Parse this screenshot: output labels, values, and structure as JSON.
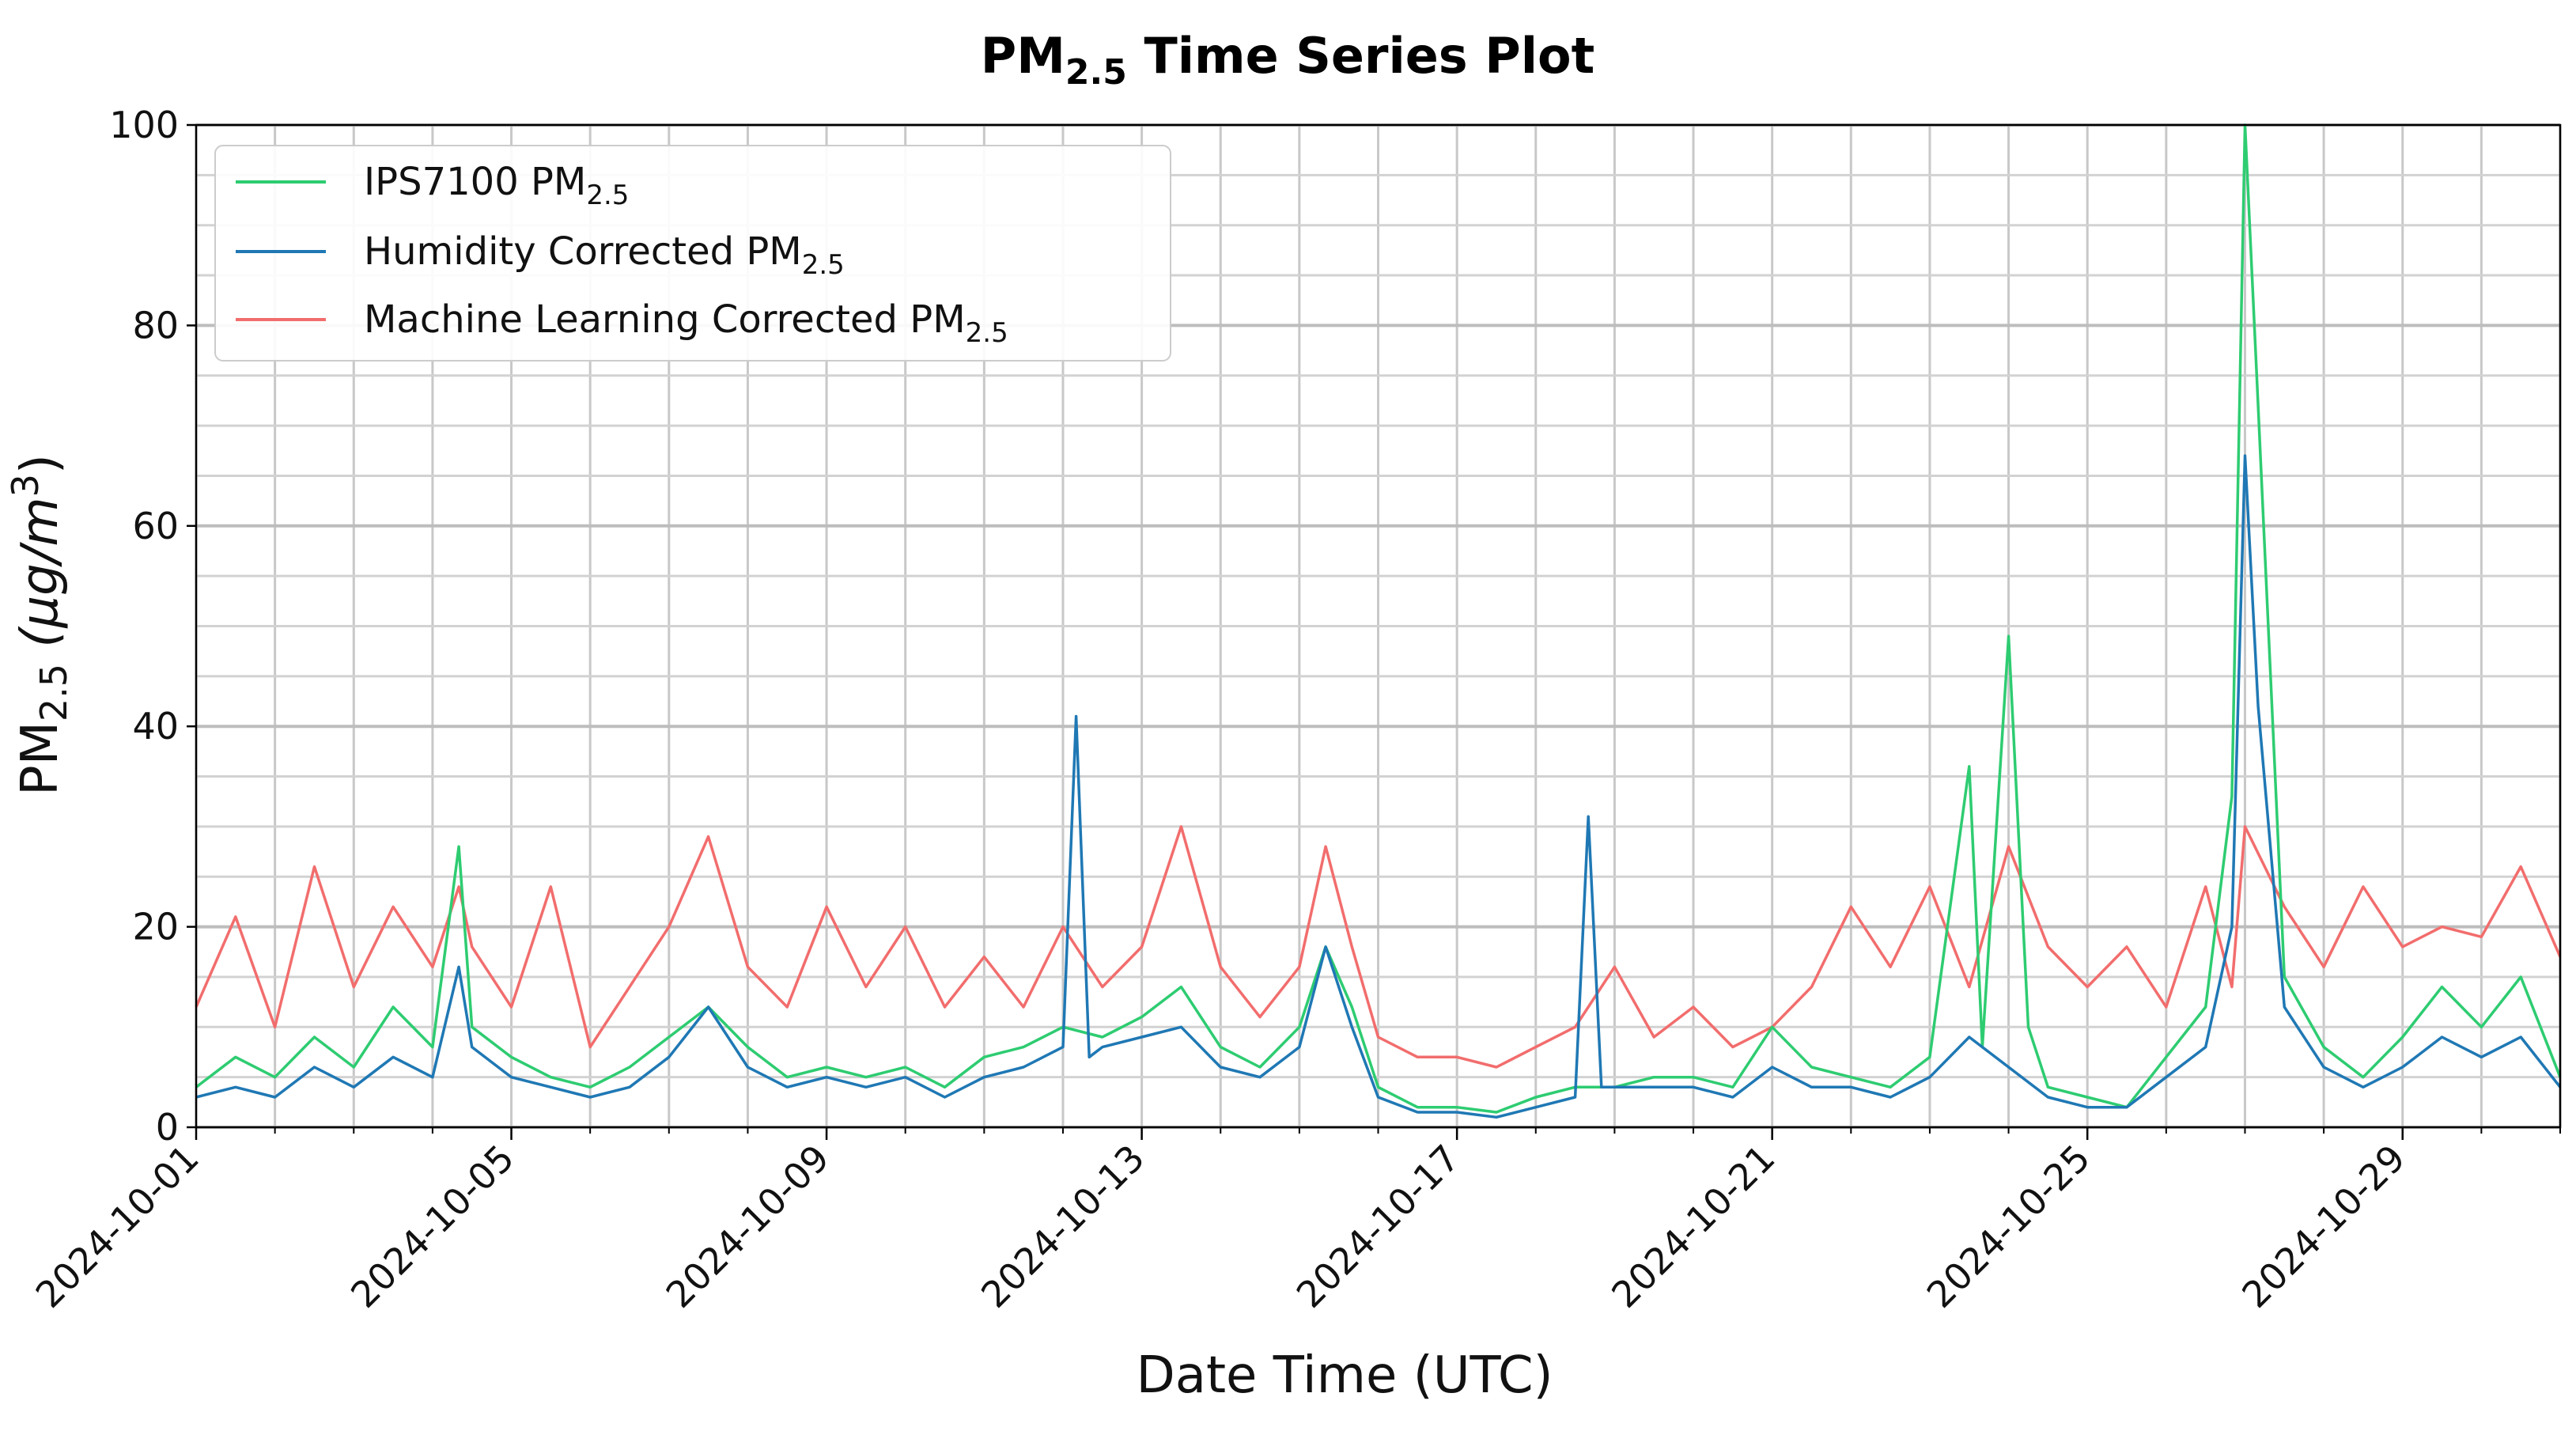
{
  "chart_data": {
    "type": "line",
    "title": "PM",
    "title_sub": "2.5",
    "title_rest": " Time Series Plot",
    "xlabel": "Date Time (UTC)",
    "ylabel_main": "PM",
    "ylabel_sub": "2.5",
    "ylabel_unit": " (μg/m",
    "ylabel_sup": "3",
    "ylabel_close": ")",
    "ylim": [
      0,
      100
    ],
    "xlim": [
      "2024-10-01",
      "2024-10-31"
    ],
    "yticks": [
      0,
      20,
      40,
      60,
      80,
      100
    ],
    "ytick_labels": [
      "0",
      "20",
      "40",
      "60",
      "80",
      "100"
    ],
    "xticks": [
      "2024-10-01",
      "2024-10-05",
      "2024-10-09",
      "2024-10-13",
      "2024-10-17",
      "2024-10-21",
      "2024-10-25",
      "2024-10-29"
    ],
    "grid": true,
    "minor_grid": true,
    "legend_position": "top-left",
    "series": [
      {
        "name": "IPS7100 PM",
        "name_sub": "2.5",
        "color": "#2ecc71",
        "points": [
          [
            "2024-10-01T00:00",
            4
          ],
          [
            "2024-10-01T12:00",
            7
          ],
          [
            "2024-10-02T00:00",
            5
          ],
          [
            "2024-10-02T12:00",
            9
          ],
          [
            "2024-10-03T00:00",
            6
          ],
          [
            "2024-10-03T12:00",
            12
          ],
          [
            "2024-10-04T00:00",
            8
          ],
          [
            "2024-10-04T08:00",
            28
          ],
          [
            "2024-10-04T12:00",
            10
          ],
          [
            "2024-10-05T00:00",
            7
          ],
          [
            "2024-10-05T12:00",
            5
          ],
          [
            "2024-10-06T00:00",
            4
          ],
          [
            "2024-10-06T12:00",
            6
          ],
          [
            "2024-10-07T00:00",
            9
          ],
          [
            "2024-10-07T12:00",
            12
          ],
          [
            "2024-10-08T00:00",
            8
          ],
          [
            "2024-10-08T12:00",
            5
          ],
          [
            "2024-10-09T00:00",
            6
          ],
          [
            "2024-10-09T12:00",
            5
          ],
          [
            "2024-10-10T00:00",
            6
          ],
          [
            "2024-10-10T12:00",
            4
          ],
          [
            "2024-10-11T00:00",
            7
          ],
          [
            "2024-10-11T12:00",
            8
          ],
          [
            "2024-10-12T00:00",
            10
          ],
          [
            "2024-10-12T12:00",
            9
          ],
          [
            "2024-10-13T00:00",
            11
          ],
          [
            "2024-10-13T12:00",
            14
          ],
          [
            "2024-10-14T00:00",
            8
          ],
          [
            "2024-10-14T12:00",
            6
          ],
          [
            "2024-10-15T00:00",
            10
          ],
          [
            "2024-10-15T08:00",
            18
          ],
          [
            "2024-10-15T16:00",
            12
          ],
          [
            "2024-10-16T00:00",
            4
          ],
          [
            "2024-10-16T12:00",
            2
          ],
          [
            "2024-10-17T00:00",
            2
          ],
          [
            "2024-10-17T12:00",
            1.5
          ],
          [
            "2024-10-18T00:00",
            3
          ],
          [
            "2024-10-18T12:00",
            4
          ],
          [
            "2024-10-19T00:00",
            4
          ],
          [
            "2024-10-19T12:00",
            5
          ],
          [
            "2024-10-20T00:00",
            5
          ],
          [
            "2024-10-20T12:00",
            4
          ],
          [
            "2024-10-21T00:00",
            10
          ],
          [
            "2024-10-21T12:00",
            6
          ],
          [
            "2024-10-22T00:00",
            5
          ],
          [
            "2024-10-22T12:00",
            4
          ],
          [
            "2024-10-23T00:00",
            7
          ],
          [
            "2024-10-23T12:00",
            36
          ],
          [
            "2024-10-23T16:00",
            8
          ],
          [
            "2024-10-24T00:00",
            49
          ],
          [
            "2024-10-24T06:00",
            10
          ],
          [
            "2024-10-24T12:00",
            4
          ],
          [
            "2024-10-25T00:00",
            3
          ],
          [
            "2024-10-25T12:00",
            2
          ],
          [
            "2024-10-26T00:00",
            7
          ],
          [
            "2024-10-26T12:00",
            12
          ],
          [
            "2024-10-26T20:00",
            33
          ],
          [
            "2024-10-27T00:00",
            100
          ],
          [
            "2024-10-27T04:00",
            72
          ],
          [
            "2024-10-27T12:00",
            15
          ],
          [
            "2024-10-28T00:00",
            8
          ],
          [
            "2024-10-28T12:00",
            5
          ],
          [
            "2024-10-29T00:00",
            9
          ],
          [
            "2024-10-29T12:00",
            14
          ],
          [
            "2024-10-30T00:00",
            10
          ],
          [
            "2024-10-30T12:00",
            15
          ],
          [
            "2024-10-31T00:00",
            5
          ]
        ]
      },
      {
        "name": "Humidity Corrected PM",
        "name_sub": "2.5",
        "color": "#1f78b4",
        "points": [
          [
            "2024-10-01T00:00",
            3
          ],
          [
            "2024-10-01T12:00",
            4
          ],
          [
            "2024-10-02T00:00",
            3
          ],
          [
            "2024-10-02T12:00",
            6
          ],
          [
            "2024-10-03T00:00",
            4
          ],
          [
            "2024-10-03T12:00",
            7
          ],
          [
            "2024-10-04T00:00",
            5
          ],
          [
            "2024-10-04T08:00",
            16
          ],
          [
            "2024-10-04T12:00",
            8
          ],
          [
            "2024-10-05T00:00",
            5
          ],
          [
            "2024-10-05T12:00",
            4
          ],
          [
            "2024-10-06T00:00",
            3
          ],
          [
            "2024-10-06T12:00",
            4
          ],
          [
            "2024-10-07T00:00",
            7
          ],
          [
            "2024-10-07T12:00",
            12
          ],
          [
            "2024-10-08T00:00",
            6
          ],
          [
            "2024-10-08T12:00",
            4
          ],
          [
            "2024-10-09T00:00",
            5
          ],
          [
            "2024-10-09T12:00",
            4
          ],
          [
            "2024-10-10T00:00",
            5
          ],
          [
            "2024-10-10T12:00",
            3
          ],
          [
            "2024-10-11T00:00",
            5
          ],
          [
            "2024-10-11T12:00",
            6
          ],
          [
            "2024-10-12T00:00",
            8
          ],
          [
            "2024-10-12T04:00",
            41
          ],
          [
            "2024-10-12T08:00",
            7
          ],
          [
            "2024-10-12T12:00",
            8
          ],
          [
            "2024-10-13T00:00",
            9
          ],
          [
            "2024-10-13T12:00",
            10
          ],
          [
            "2024-10-14T00:00",
            6
          ],
          [
            "2024-10-14T12:00",
            5
          ],
          [
            "2024-10-15T00:00",
            8
          ],
          [
            "2024-10-15T08:00",
            18
          ],
          [
            "2024-10-15T16:00",
            10
          ],
          [
            "2024-10-16T00:00",
            3
          ],
          [
            "2024-10-16T12:00",
            1.5
          ],
          [
            "2024-10-17T00:00",
            1.5
          ],
          [
            "2024-10-17T12:00",
            1
          ],
          [
            "2024-10-18T00:00",
            2
          ],
          [
            "2024-10-18T12:00",
            3
          ],
          [
            "2024-10-18T16:00",
            31
          ],
          [
            "2024-10-18T20:00",
            4
          ],
          [
            "2024-10-19T12:00",
            4
          ],
          [
            "2024-10-20T00:00",
            4
          ],
          [
            "2024-10-20T12:00",
            3
          ],
          [
            "2024-10-21T00:00",
            6
          ],
          [
            "2024-10-21T12:00",
            4
          ],
          [
            "2024-10-22T00:00",
            4
          ],
          [
            "2024-10-22T12:00",
            3
          ],
          [
            "2024-10-23T00:00",
            5
          ],
          [
            "2024-10-23T12:00",
            9
          ],
          [
            "2024-10-24T00:00",
            6
          ],
          [
            "2024-10-24T12:00",
            3
          ],
          [
            "2024-10-25T00:00",
            2
          ],
          [
            "2024-10-25T12:00",
            2
          ],
          [
            "2024-10-26T00:00",
            5
          ],
          [
            "2024-10-26T12:00",
            8
          ],
          [
            "2024-10-26T20:00",
            20
          ],
          [
            "2024-10-27T00:00",
            67
          ],
          [
            "2024-10-27T04:00",
            42
          ],
          [
            "2024-10-27T12:00",
            12
          ],
          [
            "2024-10-28T00:00",
            6
          ],
          [
            "2024-10-28T12:00",
            4
          ],
          [
            "2024-10-29T00:00",
            6
          ],
          [
            "2024-10-29T12:00",
            9
          ],
          [
            "2024-10-30T00:00",
            7
          ],
          [
            "2024-10-30T12:00",
            9
          ],
          [
            "2024-10-31T00:00",
            4
          ]
        ]
      },
      {
        "name": "Machine Learning Corrected PM",
        "name_sub": "2.5",
        "color": "#f26d6d",
        "points": [
          [
            "2024-10-01T00:00",
            12
          ],
          [
            "2024-10-01T12:00",
            21
          ],
          [
            "2024-10-02T00:00",
            10
          ],
          [
            "2024-10-02T12:00",
            26
          ],
          [
            "2024-10-03T00:00",
            14
          ],
          [
            "2024-10-03T12:00",
            22
          ],
          [
            "2024-10-04T00:00",
            16
          ],
          [
            "2024-10-04T08:00",
            24
          ],
          [
            "2024-10-04T12:00",
            18
          ],
          [
            "2024-10-05T00:00",
            12
          ],
          [
            "2024-10-05T12:00",
            24
          ],
          [
            "2024-10-06T00:00",
            8
          ],
          [
            "2024-10-06T12:00",
            14
          ],
          [
            "2024-10-07T00:00",
            20
          ],
          [
            "2024-10-07T12:00",
            29
          ],
          [
            "2024-10-08T00:00",
            16
          ],
          [
            "2024-10-08T12:00",
            12
          ],
          [
            "2024-10-09T00:00",
            22
          ],
          [
            "2024-10-09T12:00",
            14
          ],
          [
            "2024-10-10T00:00",
            20
          ],
          [
            "2024-10-10T12:00",
            12
          ],
          [
            "2024-10-11T00:00",
            17
          ],
          [
            "2024-10-11T12:00",
            12
          ],
          [
            "2024-10-12T00:00",
            20
          ],
          [
            "2024-10-12T12:00",
            14
          ],
          [
            "2024-10-13T00:00",
            18
          ],
          [
            "2024-10-13T12:00",
            30
          ],
          [
            "2024-10-14T00:00",
            16
          ],
          [
            "2024-10-14T12:00",
            11
          ],
          [
            "2024-10-15T00:00",
            16
          ],
          [
            "2024-10-15T08:00",
            28
          ],
          [
            "2024-10-15T16:00",
            18
          ],
          [
            "2024-10-16T00:00",
            9
          ],
          [
            "2024-10-16T12:00",
            7
          ],
          [
            "2024-10-17T00:00",
            7
          ],
          [
            "2024-10-17T12:00",
            6
          ],
          [
            "2024-10-18T00:00",
            8
          ],
          [
            "2024-10-18T12:00",
            10
          ],
          [
            "2024-10-19T00:00",
            16
          ],
          [
            "2024-10-19T12:00",
            9
          ],
          [
            "2024-10-20T00:00",
            12
          ],
          [
            "2024-10-20T12:00",
            8
          ],
          [
            "2024-10-21T00:00",
            10
          ],
          [
            "2024-10-21T12:00",
            14
          ],
          [
            "2024-10-22T00:00",
            22
          ],
          [
            "2024-10-22T12:00",
            16
          ],
          [
            "2024-10-23T00:00",
            24
          ],
          [
            "2024-10-23T12:00",
            14
          ],
          [
            "2024-10-24T00:00",
            28
          ],
          [
            "2024-10-24T12:00",
            18
          ],
          [
            "2024-10-25T00:00",
            14
          ],
          [
            "2024-10-25T12:00",
            18
          ],
          [
            "2024-10-26T00:00",
            12
          ],
          [
            "2024-10-26T12:00",
            24
          ],
          [
            "2024-10-26T20:00",
            14
          ],
          [
            "2024-10-27T00:00",
            30
          ],
          [
            "2024-10-27T12:00",
            22
          ],
          [
            "2024-10-28T00:00",
            16
          ],
          [
            "2024-10-28T12:00",
            24
          ],
          [
            "2024-10-29T00:00",
            18
          ],
          [
            "2024-10-29T12:00",
            20
          ],
          [
            "2024-10-30T00:00",
            19
          ],
          [
            "2024-10-30T12:00",
            26
          ],
          [
            "2024-10-31T00:00",
            17
          ]
        ]
      }
    ]
  }
}
